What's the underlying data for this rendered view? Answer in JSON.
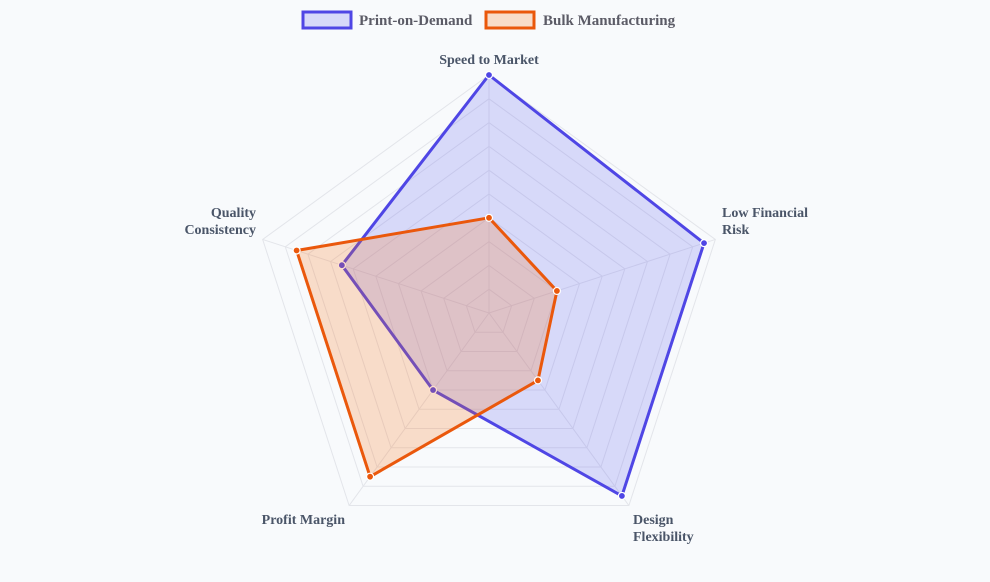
{
  "chart_data": {
    "type": "radar",
    "axes": [
      {
        "label_lines": [
          "Speed to Market"
        ]
      },
      {
        "label_lines": [
          "Low Financial",
          "Risk"
        ]
      },
      {
        "label_lines": [
          "Design",
          "Flexibility"
        ]
      },
      {
        "label_lines": [
          "Profit Margin"
        ]
      },
      {
        "label_lines": [
          "Quality",
          "Consistency"
        ]
      }
    ],
    "range": [
      0,
      10
    ],
    "grid_levels": 10,
    "series": [
      {
        "name": "Print-on-Demand",
        "values": [
          10,
          9.5,
          9.5,
          4,
          6.5
        ],
        "color": "#4f46e5",
        "fill": "rgba(99,102,241,0.22)"
      },
      {
        "name": "Bulk Manufacturing",
        "values": [
          4,
          3,
          3.5,
          8.5,
          8.5
        ],
        "color": "#ea580c",
        "fill": "rgba(249,115,22,0.22)"
      }
    ],
    "legend_position": "top"
  }
}
